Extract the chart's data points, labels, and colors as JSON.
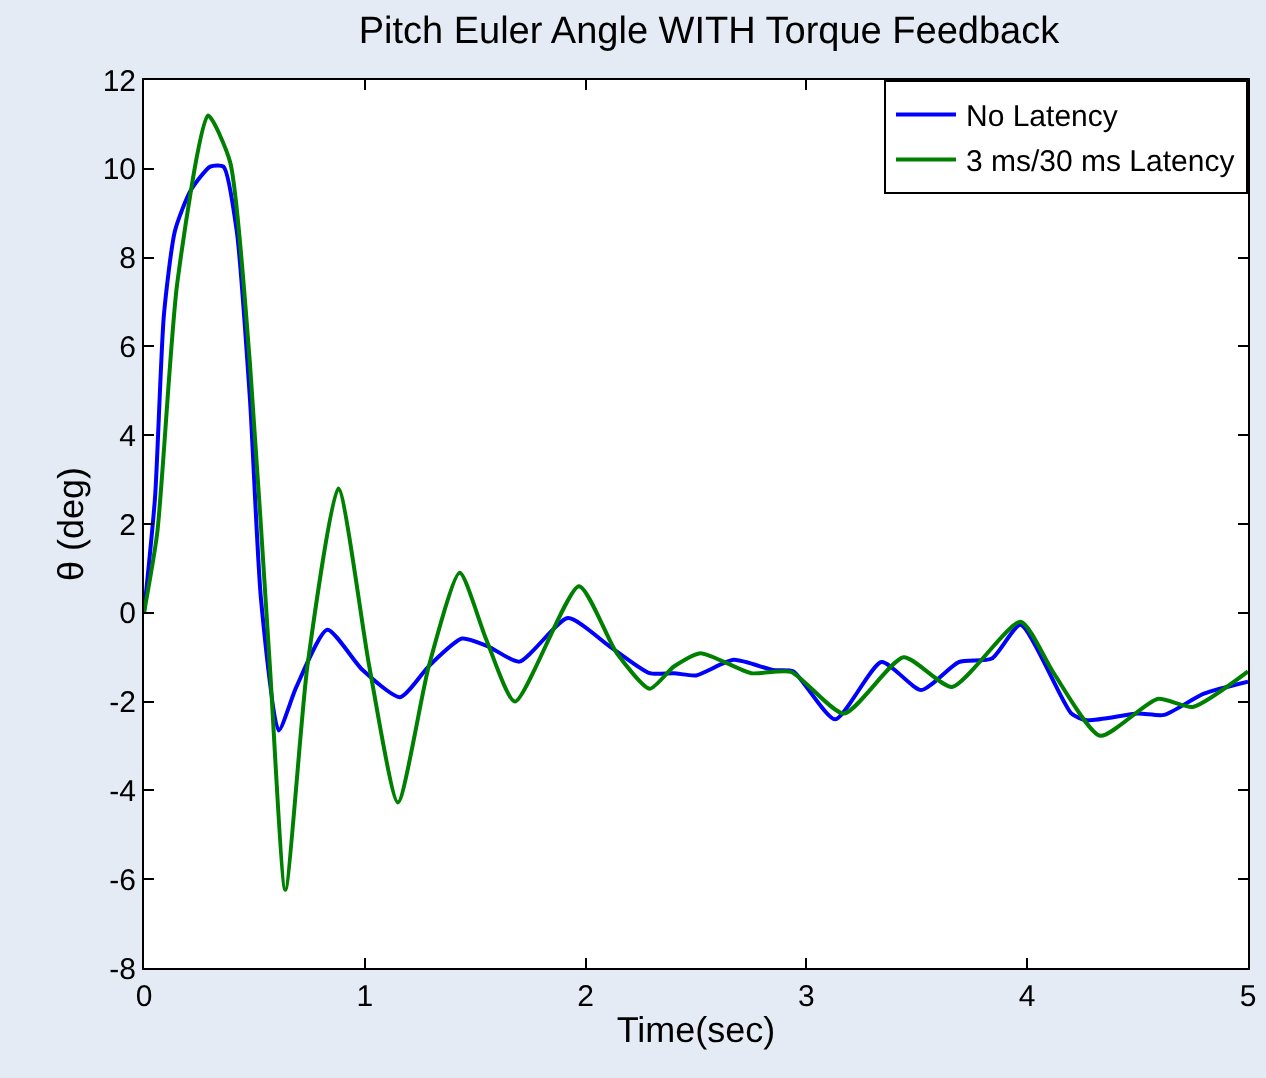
{
  "chart_data": {
    "type": "line",
    "title": "Pitch Euler Angle WITH Torque Feedback",
    "xlabel": "Time(sec)",
    "ylabel": "θ (deg)",
    "xlim": [
      0,
      5
    ],
    "xticks": [
      0,
      1,
      2,
      3,
      4,
      5
    ],
    "ylim": [
      -8,
      12
    ],
    "yticks": [
      -8,
      -6,
      -4,
      -2,
      0,
      2,
      4,
      6,
      8,
      10,
      12
    ],
    "legend": "top right",
    "marker": "none",
    "line_style": "solid",
    "series": [
      {
        "name": "No Latency",
        "color": "#0000ff",
        "x": [
          0,
          0.05,
          0.09,
          0.14,
          0.21,
          0.3,
          0.36,
          0.42,
          0.48,
          0.53,
          0.61,
          0.69,
          0.83,
          0.99,
          1.16,
          1.29,
          1.44,
          1.56,
          1.7,
          1.92,
          2.11,
          2.29,
          2.4,
          2.5,
          2.67,
          2.85,
          2.94,
          3.13,
          3.34,
          3.52,
          3.69,
          3.84,
          3.97,
          4.2,
          4.27,
          4.5,
          4.62,
          4.8,
          5.0
        ],
        "values": [
          0,
          2.6,
          6.7,
          8.6,
          9.5,
          10.05,
          10.05,
          8.6,
          4.8,
          0.3,
          -2.65,
          -1.67,
          -0.38,
          -1.29,
          -1.9,
          -1.2,
          -0.58,
          -0.76,
          -1.1,
          -0.12,
          -0.76,
          -1.36,
          -1.36,
          -1.41,
          -1.06,
          -1.29,
          -1.32,
          -2.4,
          -1.11,
          -1.74,
          -1.11,
          -1.03,
          -0.27,
          -2.27,
          -2.42,
          -2.27,
          -2.3,
          -1.82,
          -1.55
        ]
      },
      {
        "name": "3 ms/30 ms Latency",
        "color": "#008000",
        "x": [
          0,
          0.06,
          0.15,
          0.29,
          0.39,
          0.48,
          0.57,
          0.64,
          0.74,
          0.88,
          1.02,
          1.15,
          1.29,
          1.43,
          1.55,
          1.68,
          1.97,
          2.14,
          2.29,
          2.4,
          2.52,
          2.75,
          2.93,
          3.17,
          3.44,
          3.66,
          3.97,
          4.12,
          4.33,
          4.59,
          4.75,
          5.0
        ],
        "values": [
          0,
          1.8,
          7.4,
          11.2,
          10.15,
          5.6,
          -1.2,
          -6.24,
          -1.2,
          2.8,
          -1.2,
          -4.27,
          -1.2,
          0.9,
          -0.6,
          -2.0,
          0.6,
          -0.9,
          -1.71,
          -1.21,
          -0.91,
          -1.36,
          -1.33,
          -2.27,
          -1.0,
          -1.67,
          -0.2,
          -1.36,
          -2.77,
          -1.94,
          -2.12,
          -1.32
        ]
      }
    ]
  }
}
